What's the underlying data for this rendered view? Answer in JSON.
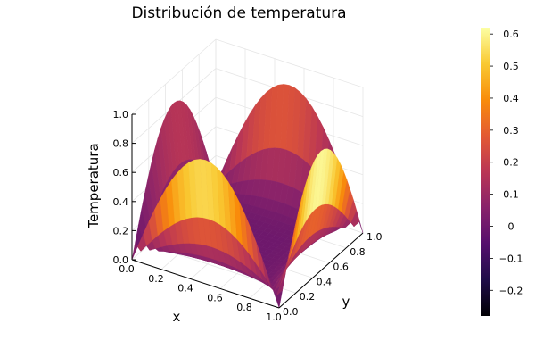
{
  "chart_data": {
    "type": "surface3d",
    "title": "Distribución de temperatura",
    "xlabel": "x",
    "ylabel": "y",
    "zlabel": "Temperatura",
    "xlim": [
      0,
      1
    ],
    "ylim": [
      0,
      1
    ],
    "zlim": [
      0,
      1
    ],
    "x_ticks": [
      "0.0",
      "0.2",
      "0.4",
      "0.6",
      "0.8",
      "1.0"
    ],
    "y_ticks": [
      "0.0",
      "0.2",
      "0.4",
      "0.6",
      "0.8",
      "1.0"
    ],
    "z_ticks": [
      "0.0",
      "0.2",
      "0.4",
      "0.6",
      "0.8",
      "1.0"
    ],
    "colorbar": {
      "range": [
        -0.28,
        0.62
      ],
      "ticks": [
        "−0.2",
        "−0.1",
        "0",
        "0.1",
        "0.2",
        "0.3",
        "0.4",
        "0.5",
        "0.6"
      ],
      "tick_values": [
        -0.2,
        -0.1,
        0,
        0.1,
        0.2,
        0.3,
        0.4,
        0.5,
        0.6
      ],
      "colormap": "inferno"
    },
    "surface_description": "Temperature surface over the unit square: boundary values follow half-sine profiles along each edge (peak ~0.9 at edge midpoints), dropping to a flat central region near 0.",
    "grid": true,
    "legend": "colorbar-right"
  }
}
